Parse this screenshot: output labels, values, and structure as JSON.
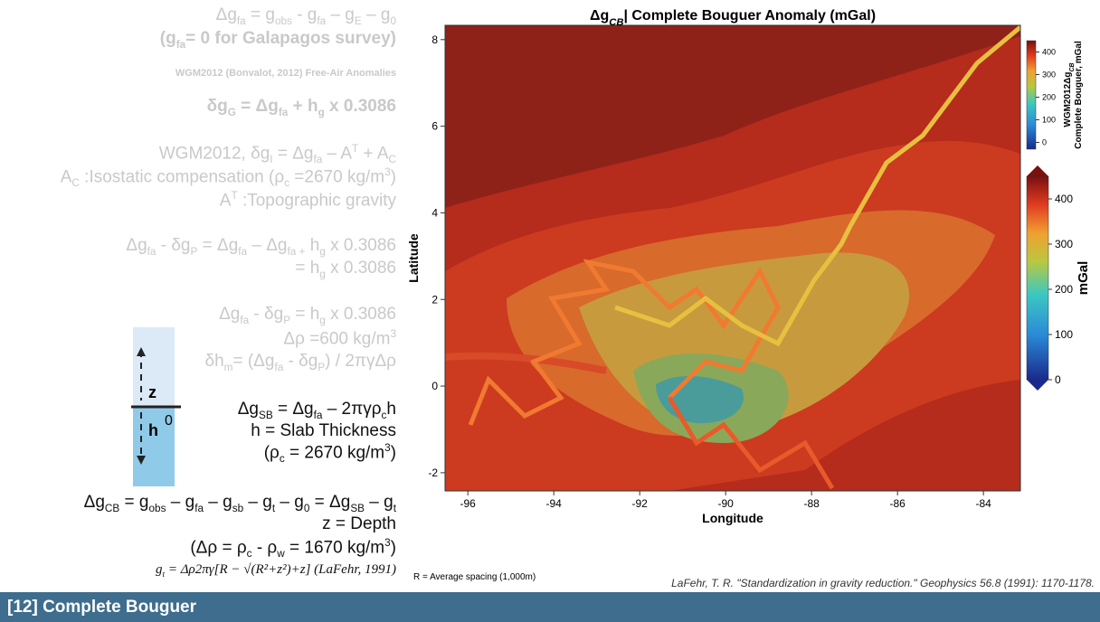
{
  "notes": [
    [
      "Δg",
      {
        "sub": "fa"
      },
      " = g",
      {
        "sub": "obs"
      },
      " - g",
      {
        "sub": "fa"
      },
      " – g",
      {
        "sub": "E"
      },
      " – g",
      {
        "sub": "0"
      }
    ],
    [
      "(g",
      {
        "sub": "fa"
      },
      "= 0 for Galapagos survey)"
    ],
    [
      "WGM2012 (Bonvalot, 2012) Free-Air Anomalies"
    ],
    [
      "δg",
      {
        "sub": "G"
      },
      " = Δg",
      {
        "sub": "fa"
      },
      "  +  h",
      {
        "sub": "g"
      },
      " x 0.3086"
    ],
    [
      "WGM2012, δg",
      {
        "sub": "I"
      },
      " = Δg",
      {
        "sub": "fa"
      },
      " – A",
      {
        "sup": "T"
      },
      " + A",
      {
        "sub": "C"
      }
    ],
    [
      "A",
      {
        "sub": "C"
      },
      " :Isostatic compensation (ρ",
      {
        "sub": "c"
      },
      " =2670 kg/m",
      {
        "sup": "3"
      },
      ")"
    ],
    [
      "A",
      {
        "sup": "T"
      },
      " :Topographic gravity"
    ],
    [
      "Δg",
      {
        "sub": "fa"
      },
      " - δg",
      {
        "sub": "P"
      },
      " = Δg",
      {
        "sub": "fa"
      },
      " – Δg",
      {
        "sub": "fa +"
      },
      " h",
      {
        "sub": "g"
      },
      " x 0.3086"
    ],
    [
      "= h",
      {
        "sub": "g"
      },
      " x 0.3086"
    ],
    [
      "Δg",
      {
        "sub": "fa"
      },
      " - δg",
      {
        "sub": "P"
      },
      " = h",
      {
        "sub": "g"
      },
      " x 0.3086"
    ],
    [
      "Δρ =600 kg/m",
      {
        "sup": "3"
      }
    ],
    [
      "δh",
      {
        "sub": "m"
      },
      "= (Δg",
      {
        "sub": "fa"
      },
      " - δg",
      {
        "sub": "P"
      },
      ") / 2πγΔρ"
    ],
    [
      "Δg",
      {
        "sub": "SB"
      },
      " = Δg",
      {
        "sub": "fa"
      },
      " – 2πγρ",
      {
        "sub": "c"
      },
      "h"
    ],
    [
      "h = Slab Thickness"
    ],
    [
      "(ρ",
      {
        "sub": "c"
      },
      " = 2670 kg/m",
      {
        "sup": "3"
      },
      ")"
    ],
    [
      "Δg",
      {
        "sub": "CB"
      },
      " = g",
      {
        "sub": "obs"
      },
      " – g",
      {
        "sub": "fa"
      },
      " – g",
      {
        "sub": "sb"
      },
      " – g",
      {
        "sub": "t"
      },
      " – g",
      {
        "sub": "0"
      },
      " = Δg",
      {
        "sub": "SB"
      },
      " – g",
      {
        "sub": "t"
      }
    ],
    [
      "z = Depth"
    ],
    [
      "(Δρ = ρ",
      {
        "sub": "c"
      },
      " - ρ",
      {
        "sub": "w"
      },
      " =  1670 kg/m",
      {
        "sup": "3"
      },
      ")"
    ],
    [
      "g",
      {
        "sub": "t"
      },
      " = Δρ2πγ[R − √(R²+z²)+z]",
      " (LaFehr, 1991)"
    ]
  ],
  "diagram": {
    "z": "z",
    "h": "h",
    "zero": "0"
  },
  "spacing_note": "R = Average spacing (1,000m)",
  "citation": "LaFehr, T. R. \"Standardization in gravity reduction.\" Geophysics 56.8 (1991): 1170-1178.",
  "footer": "[12] Complete Bouguer",
  "chart_data": {
    "type": "contour-map",
    "title": [
      "Δg",
      {
        "sub": "CB"
      },
      "|  Complete Bouguer Anomaly (mGal)"
    ],
    "x_label": "Longitude",
    "y_label": "Latitude",
    "xlim": [
      -96.53,
      -83.14
    ],
    "ylim": [
      -2.42,
      8.33
    ],
    "xticks": [
      -96,
      -94,
      -92,
      -90,
      -88,
      -86,
      -84
    ],
    "yticks": [
      -2,
      0,
      2,
      4,
      6,
      8
    ],
    "colorbars": [
      {
        "label": [
          "WGM2012Δg",
          {
            "sub": "CB"
          }
        ],
        "label2": "Complete Bouguer, mGal",
        "lim": [
          -30,
          450
        ],
        "ticks": [
          0,
          100,
          200,
          300,
          400
        ]
      },
      {
        "label": [
          "mGal"
        ],
        "lim": [
          0,
          450
        ],
        "ticks": [
          0,
          100,
          200,
          300,
          400
        ]
      }
    ]
  }
}
